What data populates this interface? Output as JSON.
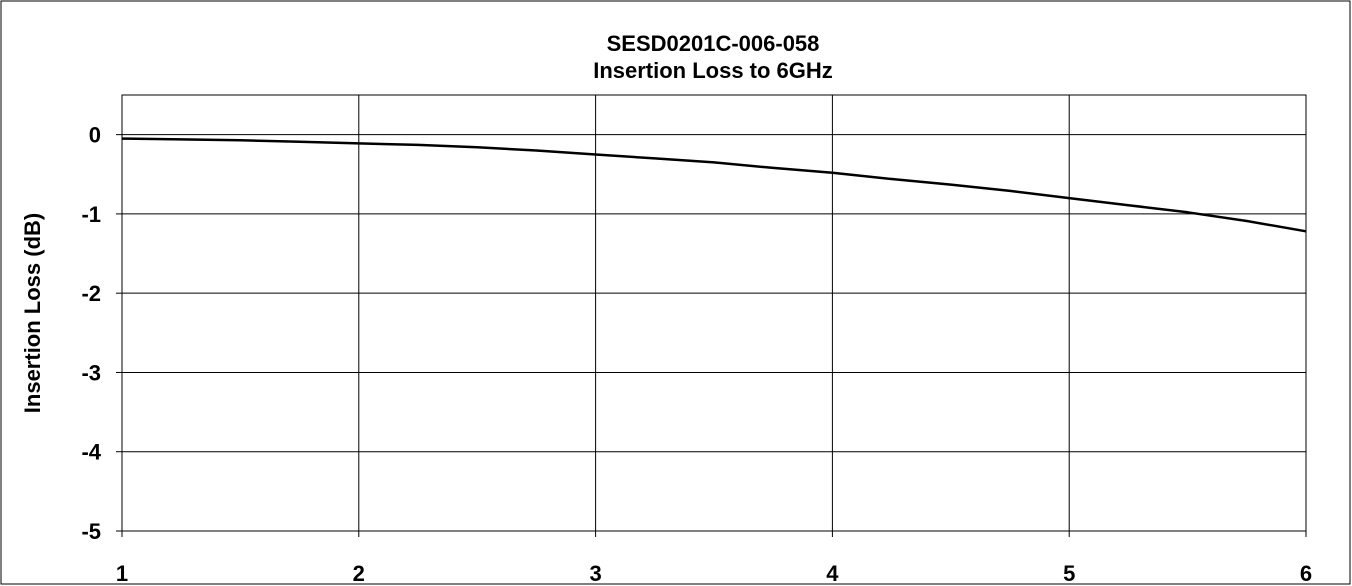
{
  "chart_data": {
    "type": "line",
    "title": "SESD0201C-006-058",
    "subtitle": "Insertion Loss to 6GHz",
    "xlabel": "",
    "ylabel": "Insertion Loss (dB)",
    "xlim": [
      1,
      6
    ],
    "ylim": [
      -5,
      0.5
    ],
    "xticks": [
      "1",
      "2",
      "3",
      "4",
      "5",
      "6"
    ],
    "yticks": [
      "0",
      "-1",
      "-2",
      "-3",
      "-4",
      "-5"
    ],
    "grid": true,
    "legend": "none",
    "line_color": "#000000",
    "series": [
      {
        "x": [
          1.0,
          1.25,
          1.5,
          1.75,
          2.0,
          2.25,
          2.5,
          2.75,
          3.0,
          3.25,
          3.5,
          3.75,
          4.0,
          4.25,
          4.5,
          4.75,
          5.0,
          5.25,
          5.5,
          5.75,
          6.0
        ],
        "values": [
          -0.05,
          -0.06,
          -0.07,
          -0.09,
          -0.11,
          -0.13,
          -0.16,
          -0.2,
          -0.25,
          -0.3,
          -0.35,
          -0.42,
          -0.48,
          -0.56,
          -0.63,
          -0.71,
          -0.8,
          -0.89,
          -0.98,
          -1.09,
          -1.22
        ]
      }
    ]
  }
}
